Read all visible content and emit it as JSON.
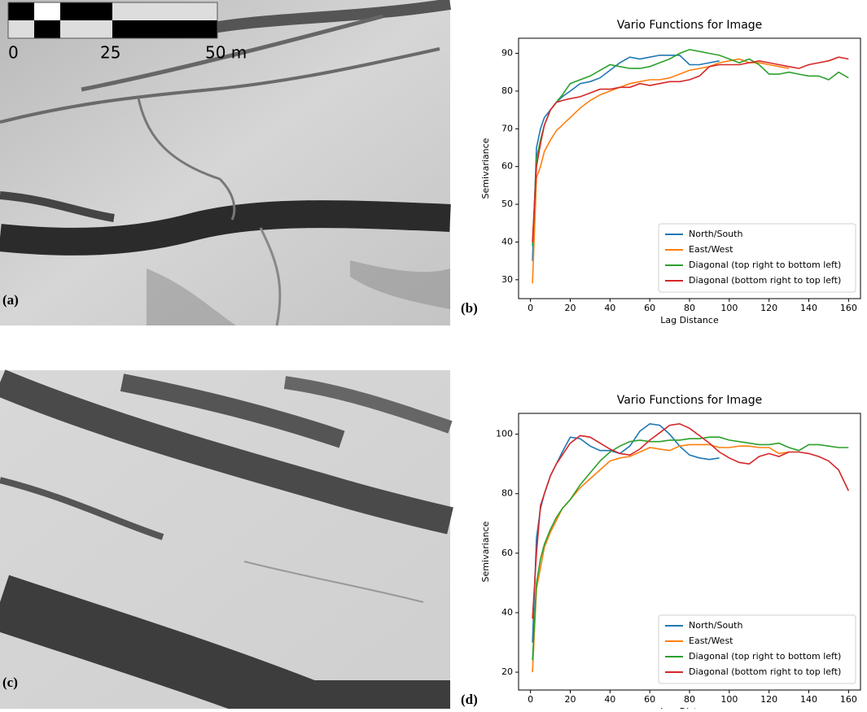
{
  "images": [
    {
      "label": "(a)",
      "scale_labels": [
        "0",
        "25",
        "50 m"
      ]
    },
    {
      "label": "(c)"
    }
  ],
  "chart_data": [
    {
      "type": "line",
      "title": "Vario Functions for Image",
      "panel_label": "(b)",
      "x_label": "Lag Distance",
      "y_label": "Semivariance",
      "x": [
        1,
        3,
        5,
        7,
        10,
        13,
        16,
        20,
        25,
        30,
        35,
        40,
        45,
        50,
        55,
        60,
        65,
        70,
        75,
        80,
        85,
        90,
        95,
        100,
        105,
        110,
        115,
        120,
        125,
        130,
        135,
        140,
        145,
        150,
        155,
        160
      ],
      "xlim": [
        -6,
        166
      ],
      "ylim": [
        25,
        94
      ],
      "xticks": [
        0,
        20,
        40,
        60,
        80,
        100,
        120,
        140,
        160
      ],
      "yticks": [
        30,
        40,
        50,
        60,
        70,
        80,
        90
      ],
      "legend": "lower right",
      "series": [
        {
          "name": "North/South",
          "color": "#1f77b4",
          "values": [
            35,
            65,
            70,
            73,
            75,
            77,
            78.5,
            80,
            82,
            82.5,
            83.5,
            85.5,
            87.5,
            89,
            88.5,
            89,
            89.5,
            89.5,
            89.5,
            87,
            87,
            87.5,
            88,
            null,
            null,
            null,
            null,
            null,
            null,
            null,
            null,
            null,
            null,
            null,
            null,
            null
          ]
        },
        {
          "name": "East/West",
          "color": "#ff7f0e",
          "values": [
            29,
            57,
            60,
            64,
            67,
            69.5,
            71,
            73,
            75.5,
            77.5,
            79,
            80,
            81,
            82,
            82.5,
            83,
            83,
            83.5,
            84.5,
            85.5,
            86,
            86.5,
            87.5,
            88,
            88.5,
            87.5,
            87.5,
            87,
            86.5,
            86,
            null,
            null,
            null,
            null,
            null,
            null
          ]
        },
        {
          "name": "Diagonal (top right to bottom left)",
          "color": "#2ca02c",
          "values": [
            39,
            62,
            67,
            71,
            75,
            77,
            79,
            82,
            83,
            84,
            85.5,
            87,
            86.5,
            86,
            86,
            86.5,
            87.5,
            88.5,
            90,
            91,
            90.5,
            90,
            89.5,
            88.5,
            87.5,
            88.5,
            87,
            84.5,
            84.5,
            85,
            84.5,
            84,
            84,
            83,
            85,
            83.5
          ]
        },
        {
          "name": "Diagonal (bottom right to top left)",
          "color": "#d62728",
          "values": [
            40,
            60,
            66,
            71,
            75,
            77,
            77.5,
            78,
            78.5,
            79.5,
            80.5,
            80.5,
            81,
            81,
            82,
            81.5,
            82,
            82.5,
            82.5,
            83,
            84,
            86.5,
            87,
            87,
            87,
            87.5,
            88,
            87.5,
            87,
            86.5,
            86,
            87,
            87.5,
            88,
            89,
            88.5
          ]
        }
      ]
    },
    {
      "type": "line",
      "title": "Vario Functions for Image",
      "panel_label": "(d)",
      "x_label": "Lag Distance",
      "y_label": "Semivariance",
      "x": [
        1,
        3,
        5,
        7,
        10,
        13,
        16,
        20,
        25,
        30,
        35,
        40,
        45,
        50,
        55,
        60,
        65,
        70,
        75,
        80,
        85,
        90,
        95,
        100,
        105,
        110,
        115,
        120,
        125,
        130,
        135,
        140,
        145,
        150,
        155,
        160
      ],
      "xlim": [
        -6,
        166
      ],
      "ylim": [
        14,
        107
      ],
      "xticks": [
        0,
        20,
        40,
        60,
        80,
        100,
        120,
        140,
        160
      ],
      "yticks": [
        20,
        40,
        60,
        80,
        100
      ],
      "legend": "lower right",
      "series": [
        {
          "name": "North/South",
          "color": "#1f77b4",
          "values": [
            30,
            65,
            75,
            80,
            86,
            90,
            94,
            99,
            98.5,
            96,
            94.5,
            94.5,
            93.5,
            96,
            101,
            103.5,
            103,
            100,
            96,
            93,
            92,
            91.5,
            92,
            null,
            null,
            null,
            null,
            null,
            null,
            null,
            null,
            null,
            null,
            null,
            null,
            null
          ]
        },
        {
          "name": "East/West",
          "color": "#ff7f0e",
          "values": [
            20,
            48,
            55,
            62,
            67,
            71,
            75,
            78,
            82,
            85,
            88,
            91,
            92,
            92.5,
            94,
            95.5,
            95,
            94.5,
            96,
            96.5,
            96.5,
            96.5,
            95.5,
            95.5,
            96,
            96,
            95.5,
            95.5,
            93.5,
            94,
            null,
            null,
            null,
            null,
            null,
            null
          ]
        },
        {
          "name": "Diagonal (top right to bottom left)",
          "color": "#2ca02c",
          "values": [
            24,
            50,
            58,
            63,
            68,
            72,
            75,
            78,
            83,
            87,
            91,
            94,
            96,
            97.5,
            98,
            97.5,
            97.5,
            98,
            98,
            98.5,
            98.5,
            99,
            99,
            98,
            97.5,
            97,
            96.5,
            96.5,
            97,
            95.5,
            94.5,
            96.5,
            96.5,
            96,
            95.5,
            95.5
          ]
        },
        {
          "name": "Diagonal (bottom right to top left)",
          "color": "#d62728",
          "values": [
            38,
            60,
            76,
            80,
            86,
            90,
            93,
            97,
            99.5,
            99,
            97,
            95,
            93.5,
            93,
            95,
            98,
            100.5,
            103,
            103.5,
            102,
            99.5,
            97,
            94,
            92,
            90.5,
            90,
            92.5,
            93.5,
            92.5,
            94,
            94,
            93.5,
            92.5,
            91,
            88,
            81
          ]
        }
      ]
    }
  ]
}
